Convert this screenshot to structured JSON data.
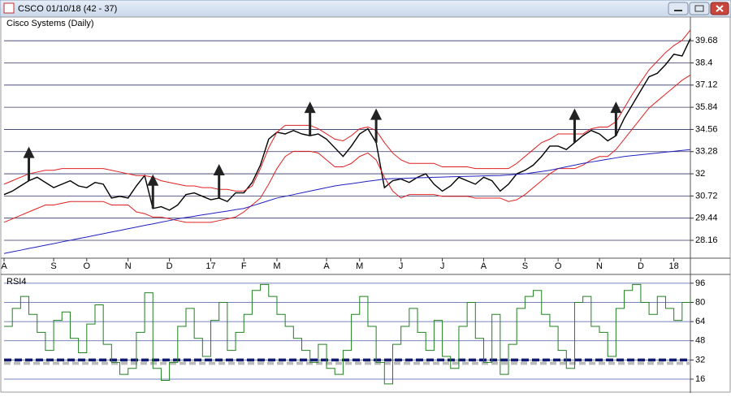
{
  "window_title": "CSCO 01/10/18 (42 - 37)",
  "chart_data": [
    {
      "type": "line",
      "title": "Cisco Systems (Daily)",
      "xlim": [
        0,
        83
      ],
      "xticks": [
        {
          "value": 0,
          "label": "A"
        },
        {
          "value": 6,
          "label": "S"
        },
        {
          "value": 10,
          "label": "O"
        },
        {
          "value": 15,
          "label": "N"
        },
        {
          "value": 20,
          "label": "D"
        },
        {
          "value": 25,
          "label": "17"
        },
        {
          "value": 29,
          "label": "F"
        },
        {
          "value": 33,
          "label": "M"
        },
        {
          "value": 39,
          "label": "A"
        },
        {
          "value": 43,
          "label": "M"
        },
        {
          "value": 48,
          "label": "J"
        },
        {
          "value": 53,
          "label": "J"
        },
        {
          "value": 58,
          "label": "A"
        },
        {
          "value": 63,
          "label": "S"
        },
        {
          "value": 67,
          "label": "O"
        },
        {
          "value": 72,
          "label": "N"
        },
        {
          "value": 77,
          "label": "D"
        },
        {
          "value": 81,
          "label": "18"
        }
      ],
      "ylim": [
        27.13,
        41.0
      ],
      "yticks": [
        28.16,
        29.44,
        30.72,
        32,
        33.28,
        34.56,
        35.84,
        37.12,
        38.4,
        39.68
      ],
      "grid": true,
      "series": [
        {
          "color": "#000000",
          "values": [
            30.8,
            31.0,
            31.3,
            31.6,
            31.8,
            31.5,
            31.2,
            31.4,
            31.6,
            31.3,
            31.2,
            31.5,
            31.4,
            30.6,
            30.7,
            30.6,
            31.3,
            31.9,
            30.0,
            30.1,
            29.9,
            30.2,
            30.8,
            30.9,
            30.7,
            30.5,
            30.6,
            30.4,
            30.9,
            30.9,
            31.5,
            32.5,
            34.0,
            34.4,
            34.3,
            34.5,
            34.3,
            34.2,
            34.3,
            34.0,
            33.5,
            33.0,
            33.6,
            34.3,
            34.6,
            33.8,
            31.2,
            31.6,
            31.7,
            31.5,
            31.8,
            32.0,
            31.4,
            31.0,
            31.3,
            31.8,
            31.6,
            31.4,
            31.8,
            31.6,
            31.0,
            31.4,
            32.0,
            32.2,
            32.5,
            33.0,
            33.6,
            33.6,
            33.4,
            33.8,
            34.2,
            34.5,
            34.3,
            33.9,
            34.2,
            35.2,
            36.0,
            36.8,
            37.6,
            37.8,
            38.3,
            38.9,
            38.8,
            39.8
          ]
        },
        {
          "color": "#e02020",
          "values": [
            31.4,
            31.6,
            31.8,
            32.0,
            32.1,
            32.2,
            32.2,
            32.3,
            32.3,
            32.3,
            32.3,
            32.3,
            32.3,
            32.2,
            32.1,
            32.0,
            31.9,
            31.9,
            31.8,
            31.6,
            31.5,
            31.4,
            31.3,
            31.3,
            31.2,
            31.2,
            31.1,
            31.1,
            31.0,
            31.0,
            31.3,
            32.3,
            33.5,
            34.4,
            34.8,
            34.8,
            34.8,
            34.8,
            34.6,
            34.3,
            34.0,
            33.9,
            34.2,
            34.6,
            34.7,
            34.5,
            33.8,
            33.2,
            32.8,
            32.6,
            32.6,
            32.6,
            32.6,
            32.4,
            32.4,
            32.4,
            32.4,
            32.3,
            32.3,
            32.3,
            32.3,
            32.3,
            32.6,
            33.0,
            33.4,
            33.8,
            34.0,
            34.3,
            34.3,
            34.3,
            34.3,
            34.6,
            34.7,
            34.7,
            35.0,
            35.8,
            36.6,
            37.3,
            38.0,
            38.5,
            39.0,
            39.4,
            39.7,
            40.3
          ]
        },
        {
          "color": "#e02020",
          "values": [
            29.2,
            29.4,
            29.6,
            29.8,
            30.0,
            30.2,
            30.2,
            30.3,
            30.4,
            30.4,
            30.4,
            30.4,
            30.4,
            30.2,
            30.2,
            30.2,
            29.8,
            29.7,
            29.5,
            29.5,
            29.4,
            29.3,
            29.2,
            29.2,
            29.2,
            29.2,
            29.3,
            29.4,
            29.5,
            29.8,
            30.2,
            30.6,
            31.4,
            32.3,
            33.0,
            33.3,
            33.3,
            33.3,
            33.2,
            32.8,
            32.4,
            32.4,
            32.6,
            33.0,
            33.2,
            32.8,
            31.8,
            31.0,
            30.6,
            30.8,
            30.8,
            30.8,
            30.8,
            30.7,
            30.7,
            30.7,
            30.7,
            30.6,
            30.6,
            30.6,
            30.6,
            30.4,
            30.5,
            30.8,
            31.2,
            31.6,
            32.0,
            32.3,
            32.3,
            32.3,
            32.5,
            32.8,
            33.0,
            33.0,
            33.4,
            34.0,
            34.6,
            35.2,
            35.8,
            36.2,
            36.6,
            37.0,
            37.4,
            37.7
          ]
        },
        {
          "color": "#2020c0",
          "values": [
            27.4,
            27.5,
            27.59,
            27.69,
            27.78,
            27.88,
            27.97,
            28.07,
            28.16,
            28.26,
            28.35,
            28.45,
            28.54,
            28.64,
            28.73,
            28.83,
            28.92,
            29.02,
            29.11,
            29.21,
            29.3,
            29.4,
            29.48,
            29.55,
            29.63,
            29.7,
            29.78,
            29.85,
            29.93,
            30.0,
            30.15,
            30.3,
            30.45,
            30.6,
            30.7,
            30.8,
            30.9,
            31.0,
            31.1,
            31.2,
            31.3,
            31.37,
            31.43,
            31.5,
            31.57,
            31.63,
            31.7,
            31.72,
            31.73,
            31.75,
            31.77,
            31.78,
            31.8,
            31.81,
            31.83,
            31.84,
            31.85,
            31.86,
            31.88,
            31.89,
            31.9,
            31.93,
            31.97,
            32.0,
            32.07,
            32.13,
            32.2,
            32.3,
            32.4,
            32.5,
            32.6,
            32.68,
            32.76,
            32.84,
            32.92,
            33.0,
            33.05,
            33.1,
            33.15,
            33.2,
            33.25,
            33.3,
            33.35,
            33.4
          ]
        }
      ],
      "signals": [
        3,
        18,
        26,
        37,
        45,
        69,
        74
      ]
    },
    {
      "type": "step",
      "title": "RSI4",
      "xlim": [
        0,
        83
      ],
      "ylim": [
        4.5,
        102
      ],
      "yticks": [
        16,
        32,
        48,
        64,
        80,
        96
      ],
      "grid": true,
      "threshold": 32,
      "series": [
        {
          "color": "#208020",
          "values": [
            60,
            75,
            85,
            70,
            55,
            40,
            65,
            72,
            50,
            38,
            62,
            78,
            45,
            30,
            20,
            25,
            55,
            88,
            25,
            15,
            30,
            60,
            75,
            50,
            35,
            65,
            80,
            40,
            55,
            70,
            90,
            95,
            85,
            70,
            60,
            50,
            40,
            30,
            45,
            25,
            20,
            40,
            70,
            85,
            60,
            30,
            12,
            45,
            60,
            75,
            55,
            40,
            65,
            35,
            25,
            60,
            80,
            50,
            30,
            70,
            20,
            45,
            75,
            85,
            90,
            70,
            60,
            40,
            25,
            80,
            85,
            60,
            55,
            35,
            75,
            90,
            95,
            80,
            70,
            85,
            75,
            65,
            80,
            85
          ]
        }
      ]
    }
  ]
}
